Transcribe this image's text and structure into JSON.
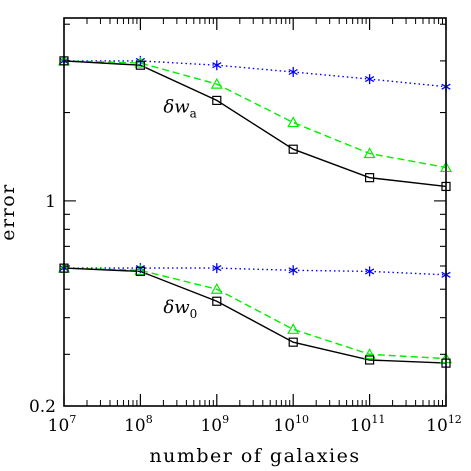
{
  "chart_data": {
    "type": "line",
    "xlabel": "number of galaxies",
    "ylabel": "error",
    "x_scale": "log",
    "y_scale": "log",
    "xlim": [
      10000000.0,
      1000000000000.0
    ],
    "ylim": [
      0.2,
      4.2
    ],
    "x_ticks": [
      {
        "value": 10000000.0,
        "base": "10",
        "exp": "7"
      },
      {
        "value": 100000000.0,
        "base": "10",
        "exp": "8"
      },
      {
        "value": 1000000000.0,
        "base": "10",
        "exp": "9"
      },
      {
        "value": 10000000000.0,
        "base": "10",
        "exp": "10"
      },
      {
        "value": 100000000000.0,
        "base": "10",
        "exp": "11"
      },
      {
        "value": 1000000000000.0,
        "base": "10",
        "exp": "12"
      }
    ],
    "y_tick_labels": [
      {
        "value": 0.2,
        "label": "0.2"
      },
      {
        "value": 1,
        "label": "1"
      }
    ],
    "x": [
      10000000.0,
      100000000.0,
      1000000000.0,
      10000000000.0,
      100000000000.0,
      1000000000000.0
    ],
    "series": [
      {
        "group": "wa",
        "marker": "star",
        "color": "#0000ff",
        "dash": "dotted",
        "values": [
          3.0,
          3.0,
          2.9,
          2.75,
          2.6,
          2.45
        ]
      },
      {
        "group": "wa",
        "marker": "triangle",
        "color": "#00ee00",
        "dash": "dashed",
        "values": [
          3.0,
          2.95,
          2.5,
          1.85,
          1.45,
          1.3
        ]
      },
      {
        "group": "wa",
        "marker": "square",
        "color": "#000000",
        "dash": "solid",
        "values": [
          3.0,
          2.9,
          2.2,
          1.5,
          1.2,
          1.12
        ]
      },
      {
        "group": "w0",
        "marker": "star",
        "color": "#0000ff",
        "dash": "dotted",
        "values": [
          0.59,
          0.59,
          0.59,
          0.58,
          0.575,
          0.56
        ]
      },
      {
        "group": "w0",
        "marker": "triangle",
        "color": "#00ee00",
        "dash": "dashed",
        "values": [
          0.59,
          0.58,
          0.5,
          0.365,
          0.3,
          0.29
        ]
      },
      {
        "group": "w0",
        "marker": "square",
        "color": "#000000",
        "dash": "solid",
        "values": [
          0.59,
          0.575,
          0.455,
          0.33,
          0.287,
          0.28
        ]
      }
    ],
    "annotations": [
      {
        "symbol": "δw",
        "subscript": "a",
        "x": 200000000.0,
        "y": 2.0
      },
      {
        "symbol": "δw",
        "subscript": "0",
        "x": 200000000.0,
        "y": 0.415
      }
    ]
  }
}
